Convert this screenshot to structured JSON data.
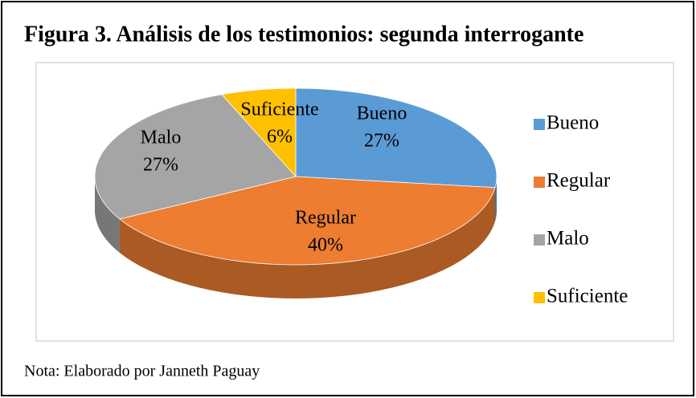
{
  "chart_data": {
    "type": "pie3d",
    "title": "Figura 3. Análisis de los testimonios: segunda interrogante",
    "categories": [
      "Bueno",
      "Regular",
      "Malo",
      "Suficiente"
    ],
    "values": [
      27,
      40,
      27,
      6
    ],
    "value_labels": [
      "27%",
      "40%",
      "27%",
      "6%"
    ],
    "colors": [
      "#5b9bd5",
      "#ed7d31",
      "#a5a5a5",
      "#ffc000"
    ],
    "legend": "right",
    "note": "Nota: Elaborado por Janneth Paguay"
  }
}
